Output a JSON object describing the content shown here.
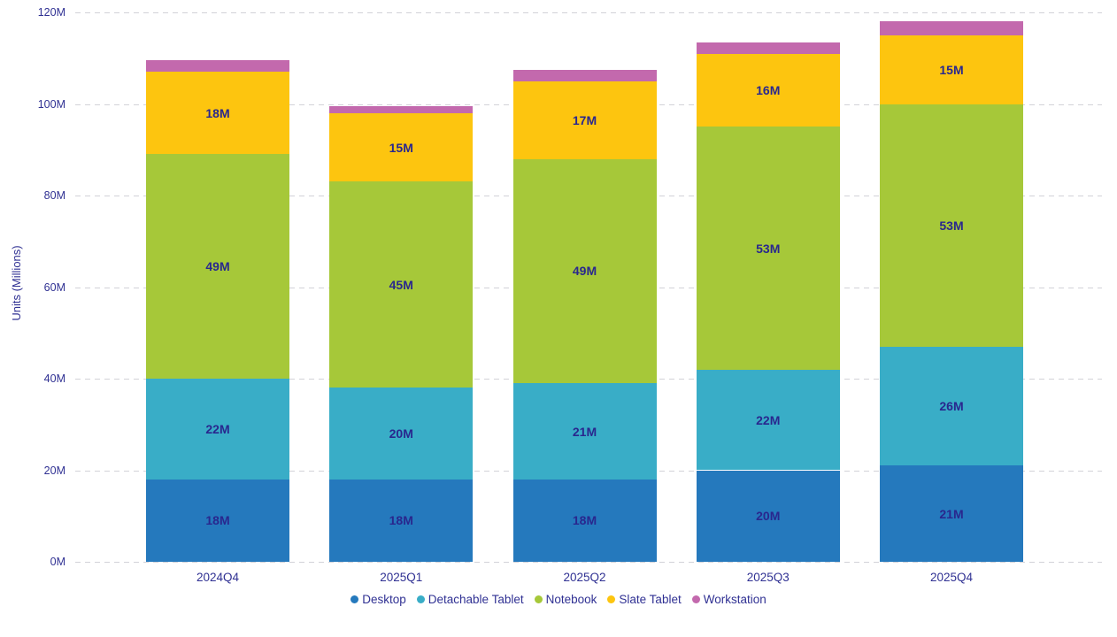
{
  "chart_data": {
    "type": "bar",
    "stacked": true,
    "title": "",
    "categories": [
      "2024Q4",
      "2025Q1",
      "2025Q2",
      "2025Q3",
      "2025Q4"
    ],
    "series": [
      {
        "name": "Desktop",
        "color": "#2579BD",
        "values": [
          18,
          18,
          18,
          20,
          21
        ]
      },
      {
        "name": "Detachable Tablet",
        "color": "#39ADC7",
        "values": [
          22,
          20,
          21,
          22,
          26
        ]
      },
      {
        "name": "Notebook",
        "color": "#A6C839",
        "values": [
          49,
          45,
          49,
          53,
          53
        ]
      },
      {
        "name": "Slate Tablet",
        "color": "#FDC50F",
        "values": [
          18,
          15,
          17,
          16,
          15
        ]
      },
      {
        "name": "Workstation",
        "color": "#C369AD",
        "values": [
          2.5,
          1.5,
          2.5,
          2.5,
          3
        ]
      }
    ],
    "segment_labels": [
      "18M",
      "22M",
      "49M",
      "18M",
      "18M",
      "20M",
      "45M",
      "15M",
      "18M",
      "21M",
      "49M",
      "17M",
      "20M",
      "22M",
      "53M",
      "16M",
      "21M",
      "26M",
      "53M",
      "15M"
    ],
    "value_label_suffix": "M",
    "xlabel": "",
    "ylabel": "Units (Millions)",
    "ylim": [
      0,
      120
    ],
    "yticks": [
      0,
      20,
      40,
      60,
      80,
      100,
      120
    ],
    "ytick_labels": [
      "0M",
      "20M",
      "40M",
      "60M",
      "80M",
      "100M",
      "120M"
    ],
    "grid": true,
    "legend_position": "bottom"
  },
  "colors": {
    "axis_text": "#303193",
    "label_text": "#29278E",
    "gridline": "#D2D2D8",
    "background": "#FFFFFF"
  }
}
